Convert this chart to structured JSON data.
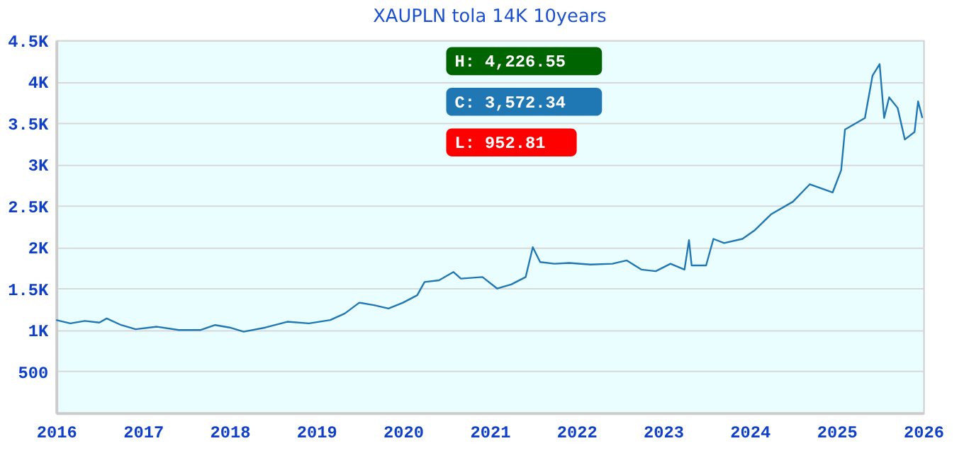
{
  "chart_data": {
    "type": "line",
    "title": "XAUPLN tola 14K 10years",
    "x": [
      "2016-01-01",
      "2016-03-01",
      "2016-05-01",
      "2016-07-01",
      "2016-08-01",
      "2016-10-01",
      "2016-12-01",
      "2017-03-01",
      "2017-06-01",
      "2017-09-01",
      "2017-11-01",
      "2018-01-01",
      "2018-03-01",
      "2018-06-01",
      "2018-09-01",
      "2018-12-01",
      "2019-03-01",
      "2019-05-01",
      "2019-07-01",
      "2019-09-01",
      "2019-11-01",
      "2020-01-01",
      "2020-03-01",
      "2020-04-01",
      "2020-06-01",
      "2020-08-01",
      "2020-09-01",
      "2020-12-01",
      "2021-02-01",
      "2021-04-01",
      "2021-06-01",
      "2021-07-01",
      "2021-08-01",
      "2021-10-01",
      "2021-12-01",
      "2022-03-01",
      "2022-06-01",
      "2022-08-01",
      "2022-10-01",
      "2022-12-01",
      "2023-02-01",
      "2023-04-01",
      "2023-04-20",
      "2023-05-01",
      "2023-07-01",
      "2023-08-01",
      "2023-09-15",
      "2023-12-01",
      "2024-01-20",
      "2024-04-01",
      "2024-07-01",
      "2024-09-10",
      "2024-12-15",
      "2025-01-20",
      "2025-02-05",
      "2025-04-30",
      "2025-06-01",
      "2025-07-01",
      "2025-07-20",
      "2025-08-10",
      "2025-09-15",
      "2025-10-15",
      "2025-11-25",
      "2025-12-10",
      "2025-12-28"
    ],
    "values": [
      1120,
      1080,
      1110,
      1090,
      1140,
      1060,
      1010,
      1040,
      1000,
      1000,
      1060,
      1030,
      980,
      1030,
      1100,
      1080,
      1120,
      1200,
      1330,
      1300,
      1260,
      1330,
      1420,
      1580,
      1600,
      1700,
      1620,
      1640,
      1500,
      1550,
      1640,
      2000,
      1820,
      1800,
      1810,
      1790,
      1800,
      1840,
      1730,
      1710,
      1800,
      1730,
      2085,
      1780,
      1780,
      2100,
      2050,
      2100,
      2200,
      2400,
      2550,
      2760,
      2660,
      2930,
      3420,
      3560,
      4070,
      4210,
      3560,
      3810,
      3680,
      3300,
      3390,
      3760,
      3560
    ],
    "color": "#1f77b4",
    "xlim": [
      "2016-01-01",
      "2026-01-01"
    ],
    "xticks": [
      {
        "value": "2016-01-01",
        "label": "2016"
      },
      {
        "value": "2017-01-01",
        "label": "2017"
      },
      {
        "value": "2018-01-01",
        "label": "2018"
      },
      {
        "value": "2019-01-01",
        "label": "2019"
      },
      {
        "value": "2020-01-01",
        "label": "2020"
      },
      {
        "value": "2021-01-01",
        "label": "2021"
      },
      {
        "value": "2022-01-01",
        "label": "2022"
      },
      {
        "value": "2023-01-01",
        "label": "2023"
      },
      {
        "value": "2024-01-01",
        "label": "2024"
      },
      {
        "value": "2025-01-01",
        "label": "2025"
      },
      {
        "value": "2026-01-01",
        "label": "2026"
      }
    ],
    "ylim": [
      0,
      4500
    ],
    "yticks": [
      500,
      {
        "value": 1000,
        "label": "1K"
      },
      {
        "value": 1500,
        "label": "1.5K"
      },
      {
        "value": 2000,
        "label": "2K"
      },
      {
        "value": 2500,
        "label": "2.5K"
      },
      {
        "value": 3000,
        "label": "3K"
      },
      {
        "value": 3500,
        "label": "3.5K"
      },
      {
        "value": 4000,
        "label": "4K"
      },
      {
        "value": 4500,
        "label": "4.5K"
      }
    ],
    "grid": "y",
    "marker": "none",
    "annotations": [
      "H: 4,226.55",
      "C: 3,572.34",
      "L: 952.81"
    ]
  }
}
